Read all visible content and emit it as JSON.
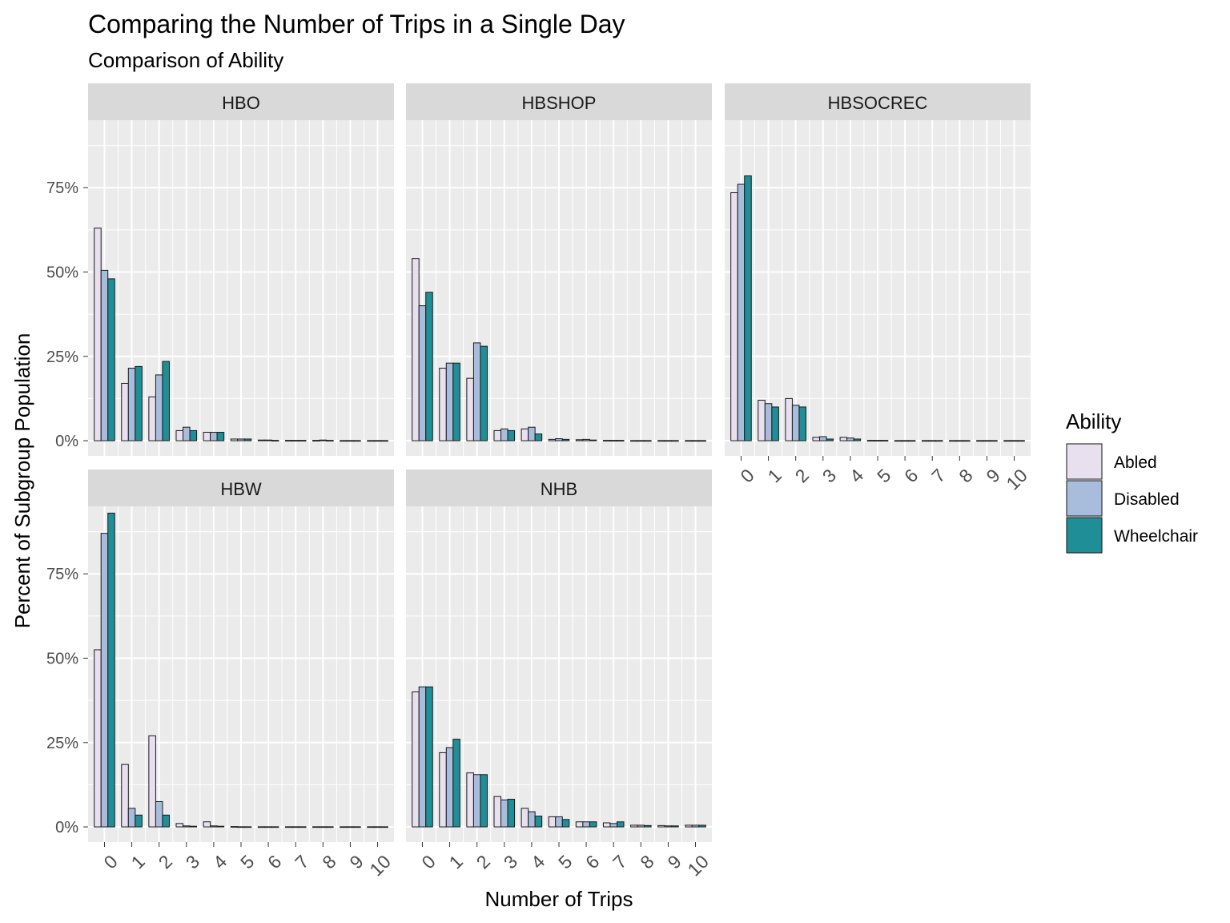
{
  "chart_data": {
    "type": "bar",
    "title": "Comparing the Number of Trips in a Single Day",
    "subtitle": "Comparison of Ability",
    "xlabel": "Number of Trips",
    "ylabel": "Percent of Subgroup Population",
    "x_ticks": [
      "0",
      "1",
      "2",
      "3",
      "4",
      "5",
      "6",
      "7",
      "8",
      "9",
      "10"
    ],
    "y_ticks": [
      {
        "value": 0,
        "label": "0%"
      },
      {
        "value": 0.25,
        "label": "25%"
      },
      {
        "value": 0.5,
        "label": "50%"
      },
      {
        "value": 0.75,
        "label": "75%"
      }
    ],
    "ylim": [
      -0.045,
      0.95
    ],
    "grid": true,
    "legend": {
      "title": "Ability",
      "position": "right",
      "entries": [
        {
          "name": "Abled",
          "color": "#E8E0EF"
        },
        {
          "name": "Disabled",
          "color": "#A8BCDC"
        },
        {
          "name": "Wheelchair",
          "color": "#1F8E96"
        }
      ]
    },
    "panels": [
      {
        "name": "HBO",
        "series": [
          {
            "name": "Abled",
            "values": [
              0.63,
              0.17,
              0.13,
              0.03,
              0.025,
              0.005,
              0.002,
              0.001,
              0.001,
              0.0005,
              0.0005
            ]
          },
          {
            "name": "Disabled",
            "values": [
              0.505,
              0.215,
              0.195,
              0.04,
              0.025,
              0.005,
              0.002,
              0.001,
              0.002,
              0.0005,
              0.0005
            ]
          },
          {
            "name": "Wheelchair",
            "values": [
              0.48,
              0.22,
              0.235,
              0.03,
              0.025,
              0.005,
              0.001,
              0.001,
              0.001,
              0.0005,
              0.0005
            ]
          }
        ]
      },
      {
        "name": "HBSHOP",
        "series": [
          {
            "name": "Abled",
            "values": [
              0.54,
              0.215,
              0.185,
              0.03,
              0.035,
              0.004,
              0.003,
              0.001,
              0.0005,
              0.0005,
              0.0005
            ]
          },
          {
            "name": "Disabled",
            "values": [
              0.4,
              0.23,
              0.29,
              0.035,
              0.04,
              0.006,
              0.004,
              0.001,
              0.0005,
              0.0005,
              0.0005
            ]
          },
          {
            "name": "Wheelchair",
            "values": [
              0.44,
              0.23,
              0.28,
              0.03,
              0.02,
              0.004,
              0.002,
              0.001,
              0.0005,
              0.0005,
              0.0005
            ]
          }
        ]
      },
      {
        "name": "HBSOCREC",
        "series": [
          {
            "name": "Abled",
            "values": [
              0.735,
              0.12,
              0.125,
              0.01,
              0.01,
              0.001,
              0.0005,
              0.0005,
              0.0005,
              0.0005,
              0.0005
            ]
          },
          {
            "name": "Disabled",
            "values": [
              0.76,
              0.11,
              0.105,
              0.012,
              0.008,
              0.001,
              0.0005,
              0.0005,
              0.0005,
              0.0005,
              0.0005
            ]
          },
          {
            "name": "Wheelchair",
            "values": [
              0.785,
              0.1,
              0.1,
              0.005,
              0.005,
              0.001,
              0.0005,
              0.0005,
              0.0005,
              0.0005,
              0.0005
            ]
          }
        ]
      },
      {
        "name": "HBW",
        "series": [
          {
            "name": "Abled",
            "values": [
              0.525,
              0.185,
              0.27,
              0.01,
              0.015,
              0.001,
              0.0005,
              0.0005,
              0.0005,
              0.0005,
              0.0005
            ]
          },
          {
            "name": "Disabled",
            "values": [
              0.87,
              0.055,
              0.075,
              0.003,
              0.003,
              0.0005,
              0.0005,
              0.0005,
              0.0005,
              0.0005,
              0.0005
            ]
          },
          {
            "name": "Wheelchair",
            "values": [
              0.93,
              0.035,
              0.035,
              0.002,
              0.002,
              0.0005,
              0.0005,
              0.0005,
              0.0005,
              0.0005,
              0.0005
            ]
          }
        ]
      },
      {
        "name": "NHB",
        "series": [
          {
            "name": "Abled",
            "values": [
              0.4,
              0.22,
              0.16,
              0.09,
              0.055,
              0.03,
              0.015,
              0.012,
              0.005,
              0.004,
              0.005
            ]
          },
          {
            "name": "Disabled",
            "values": [
              0.415,
              0.235,
              0.155,
              0.08,
              0.045,
              0.03,
              0.015,
              0.01,
              0.005,
              0.003,
              0.005
            ]
          },
          {
            "name": "Wheelchair",
            "values": [
              0.415,
              0.26,
              0.155,
              0.082,
              0.032,
              0.022,
              0.015,
              0.015,
              0.004,
              0.003,
              0.005
            ]
          }
        ]
      }
    ]
  }
}
